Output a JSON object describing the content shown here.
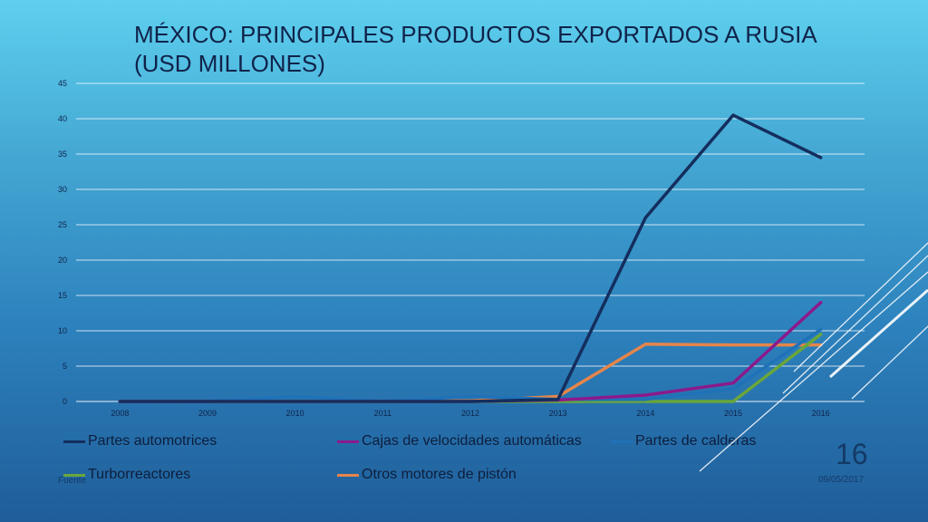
{
  "slide": {
    "title_line1": "MÉXICO: PRINCIPALES PRODUCTOS EXPORTADOS A RUSIA",
    "title_line2": "(USD MILLONES)",
    "slide_number": "16",
    "date": "09/05/2017",
    "source_label": "Fuente"
  },
  "colors": {
    "grid": "#ffffff",
    "tick_text": "#10234a"
  },
  "chart_data": {
    "type": "line",
    "title": "MÉXICO: PRINCIPALES PRODUCTOS EXPORTADOS A RUSIA (USD MILLONES)",
    "xlabel": "",
    "ylabel": "",
    "categories": [
      "2008",
      "2009",
      "2010",
      "2011",
      "2012",
      "2013",
      "2014",
      "2015",
      "2016"
    ],
    "ylim": [
      0,
      45
    ],
    "yticks": [
      0,
      5,
      10,
      15,
      20,
      25,
      30,
      35,
      40,
      45
    ],
    "grid": true,
    "legend_position": "bottom",
    "series": [
      {
        "name": "Partes automotrices",
        "color": "#142e5e",
        "values": [
          0,
          0,
          0,
          0,
          0,
          0.3,
          26,
          40.5,
          34.5
        ]
      },
      {
        "name": "Cajas de velocidades automáticas",
        "color": "#8b1a8c",
        "values": [
          0,
          0,
          0,
          0,
          0,
          0.2,
          0.9,
          2.6,
          14
        ]
      },
      {
        "name": "Partes de calderas",
        "color": "#1f72b8",
        "values": [
          0,
          0,
          0.7,
          0,
          0.7,
          0.3,
          0.3,
          1.8,
          10.2
        ]
      },
      {
        "name": "Turborreactores",
        "color": "#6aa63a",
        "values": [
          0,
          0,
          0,
          0,
          0,
          0,
          0,
          0,
          9.5
        ]
      },
      {
        "name": "Otros motores de pistón",
        "color": "#e6854a",
        "values": [
          0,
          0,
          0,
          0,
          0.1,
          0.7,
          8.1,
          8,
          8
        ]
      }
    ]
  }
}
